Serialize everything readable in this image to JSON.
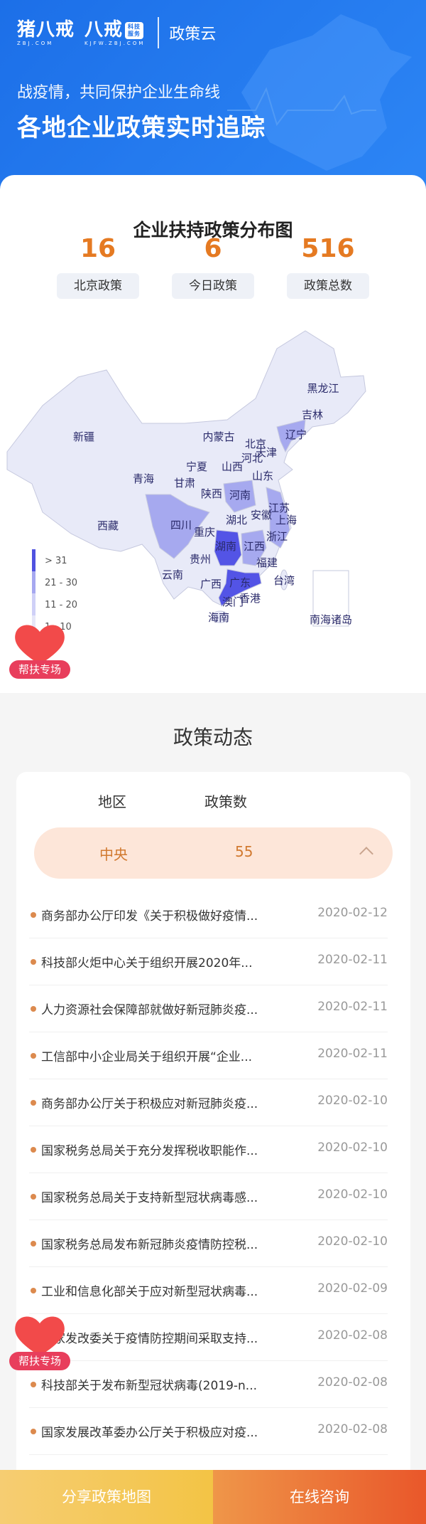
{
  "header": {
    "logo1": "猪八戒",
    "logo1_sub": "ZBJ.COM",
    "logo2": "八戒",
    "logo2_tag": "科技服务",
    "logo2_sub": "KJFW.ZBJ.COM",
    "product": "政策云",
    "slogan": "战疫情，共同保护企业生命线",
    "headline": "各地企业政策实时追踪"
  },
  "map_card": {
    "title": "企业扶持政策分布图",
    "stats": [
      {
        "value": "16",
        "label": "北京政策"
      },
      {
        "value": "6",
        "label": "今日政策"
      },
      {
        "value": "516",
        "label": "政策总数"
      }
    ]
  },
  "map": {
    "legend": [
      {
        "label": "> 31",
        "color": "#5052e0"
      },
      {
        "label": "21 - 30",
        "color": "#a6a8f0"
      },
      {
        "label": "11 - 20",
        "color": "#cfd0f7"
      },
      {
        "label": "1 - 10",
        "color": "#e6e7f8"
      }
    ],
    "base_color": "#e8eaf8",
    "mid_color": "#a6a9ef",
    "dark_color": "#5354e6",
    "provinces": [
      "新疆",
      "黑龙江",
      "吉林",
      "辽宁",
      "内蒙古",
      "北京",
      "天津",
      "河北",
      "宁夏",
      "山西",
      "山东",
      "青海",
      "甘肃",
      "陕西",
      "河南",
      "江苏",
      "安徽",
      "上海",
      "湖北",
      "四川",
      "西藏",
      "重庆",
      "浙江",
      "湖南",
      "江西",
      "贵州",
      "福建",
      "云南",
      "广西",
      "广东",
      "台湾",
      "香港",
      "澳门",
      "海南",
      "南海诸岛"
    ]
  },
  "badge": {
    "label": "帮扶专场"
  },
  "policy": {
    "title": "政策动态",
    "col_region": "地区",
    "col_count": "政策数",
    "selected": {
      "region": "中央",
      "count": "55"
    },
    "items": [
      {
        "title": "商务部办公厅印发《关于积极做好疫情...",
        "date": "2020-02-12"
      },
      {
        "title": "科技部火炬中心关于组织开展2020年...",
        "date": "2020-02-11"
      },
      {
        "title": "人力资源社会保障部就做好新冠肺炎疫...",
        "date": "2020-02-11"
      },
      {
        "title": "工信部中小企业局关于组织开展“企业...",
        "date": "2020-02-11"
      },
      {
        "title": "商务部办公厅关于积极应对新冠肺炎疫...",
        "date": "2020-02-10"
      },
      {
        "title": "国家税务总局关于充分发挥税收职能作...",
        "date": "2020-02-10"
      },
      {
        "title": "国家税务总局关于支持新型冠状病毒感...",
        "date": "2020-02-10"
      },
      {
        "title": "国家税务总局发布新冠肺炎疫情防控税...",
        "date": "2020-02-10"
      },
      {
        "title": "工业和信息化部关于应对新型冠状病毒...",
        "date": "2020-02-09"
      },
      {
        "title": "国家发改委关于疫情防控期间采取支持...",
        "date": "2020-02-08"
      },
      {
        "title": "科技部关于发布新型冠状病毒(2019-n...",
        "date": "2020-02-08"
      },
      {
        "title": "国家发展改革委办公厅关于积极应对疫...",
        "date": "2020-02-08"
      }
    ]
  },
  "bottom": {
    "share": "分享政策地图",
    "consult": "在线咨询"
  }
}
